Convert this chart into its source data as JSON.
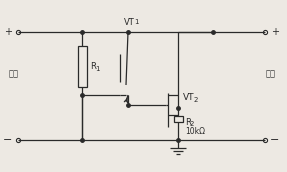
{
  "fig_width": 2.87,
  "fig_height": 1.72,
  "dpi": 100,
  "bg_color": "#ede9e3",
  "line_color": "#2a2a2a",
  "lw": 0.9,
  "labels": {
    "input_cn": "输入",
    "output_cn": "输出",
    "VT1": "VT",
    "VT1_sub": "1",
    "VT2": "VT",
    "VT2_sub": "2",
    "R1": "R",
    "R1_sub": "1",
    "R2": "R",
    "R2_sub": "2",
    "R2_val": "10kΩ"
  }
}
